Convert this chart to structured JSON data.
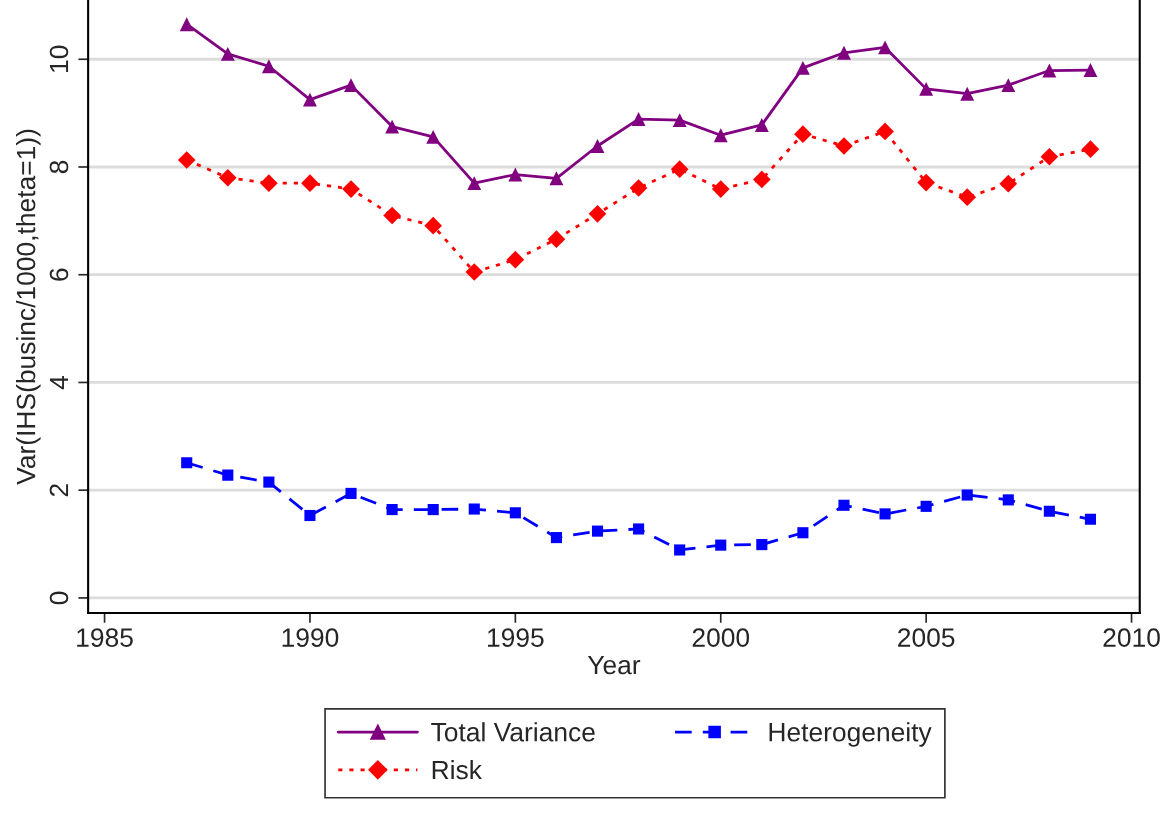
{
  "chart_data": {
    "type": "line",
    "xlabel": "Year",
    "ylabel": "Var(IHS(businc/1000,theta=1))",
    "x": [
      1987,
      1988,
      1989,
      1990,
      1991,
      1992,
      1993,
      1994,
      1995,
      1996,
      1997,
      1998,
      1999,
      2000,
      2001,
      2002,
      2003,
      2004,
      2005,
      2006,
      2007,
      2008,
      2009
    ],
    "series": [
      {
        "name": "Total Variance",
        "color": "#800080",
        "marker": "triangle",
        "line_style": "solid",
        "values": [
          10.65,
          10.1,
          9.87,
          9.25,
          9.52,
          8.75,
          8.56,
          7.7,
          7.86,
          7.79,
          8.39,
          8.89,
          8.87,
          8.59,
          8.78,
          9.84,
          10.12,
          10.22,
          9.45,
          9.36,
          9.52,
          9.79,
          9.8
        ]
      },
      {
        "name": "Risk",
        "color": "#ff0000",
        "marker": "diamond",
        "line_style": "dotted",
        "values": [
          8.13,
          7.8,
          7.7,
          7.7,
          7.59,
          7.1,
          6.91,
          6.05,
          6.28,
          6.66,
          7.13,
          7.61,
          7.96,
          7.59,
          7.77,
          8.61,
          8.39,
          8.66,
          7.71,
          7.44,
          7.69,
          8.19,
          8.33
        ]
      },
      {
        "name": "Heterogeneity",
        "color": "#0000ff",
        "marker": "square",
        "line_style": "dashed",
        "values": [
          2.51,
          2.28,
          2.15,
          1.53,
          1.94,
          1.64,
          1.64,
          1.65,
          1.58,
          1.12,
          1.24,
          1.28,
          0.89,
          0.98,
          0.99,
          1.21,
          1.72,
          1.56,
          1.7,
          1.91,
          1.82,
          1.61,
          1.46
        ]
      }
    ],
    "xlim": [
      1984.6,
      2010.2
    ],
    "ylim": [
      -0.28,
      11.1
    ],
    "xticks": [
      1985,
      1990,
      1995,
      2000,
      2005,
      2010
    ],
    "yticks": [
      0,
      2,
      4,
      6,
      8,
      10
    ],
    "grid": "y",
    "legend": "bottom"
  }
}
